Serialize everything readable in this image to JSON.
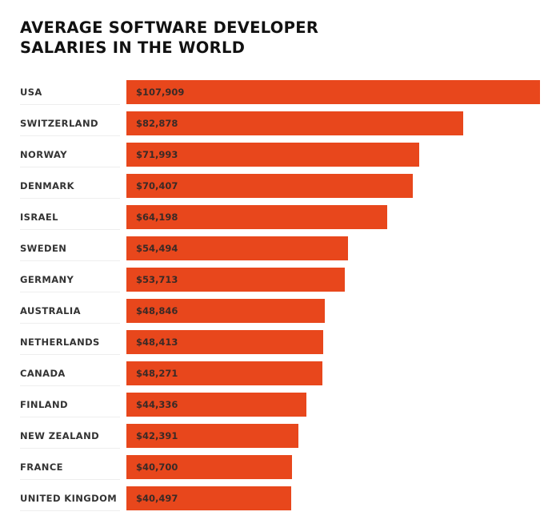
{
  "chart_data": {
    "type": "bar",
    "orientation": "horizontal",
    "title": "AVERAGE SOFTWARE DEVELOPER SALARIES IN THE WORLD",
    "title_lines": [
      "AVERAGE SOFTWARE DEVELOPER",
      "SALARIES IN THE WORLD"
    ],
    "bar_color": "#e8471c",
    "categories": [
      "USA",
      "SWITZERLAND",
      "NORWAY",
      "DENMARK",
      "ISRAEL",
      "SWEDEN",
      "GERMANY",
      "AUSTRALIA",
      "NETHERLANDS",
      "CANADA",
      "FINLAND",
      "NEW ZEALAND",
      "FRANCE",
      "UNITED KINGDOM"
    ],
    "values": [
      107909,
      82878,
      71993,
      70407,
      64198,
      54494,
      53713,
      48846,
      48413,
      48271,
      44336,
      42391,
      40700,
      40497
    ],
    "data_labels": [
      "$107,909",
      "$82,878",
      "$71,993",
      "$70,407",
      "$64,198",
      "$54,494",
      "$53,713",
      "$48,846",
      "$48,413",
      "$48,271",
      "$44,336",
      "$42,391",
      "$40,700",
      "$40,497"
    ],
    "grid": false
  }
}
